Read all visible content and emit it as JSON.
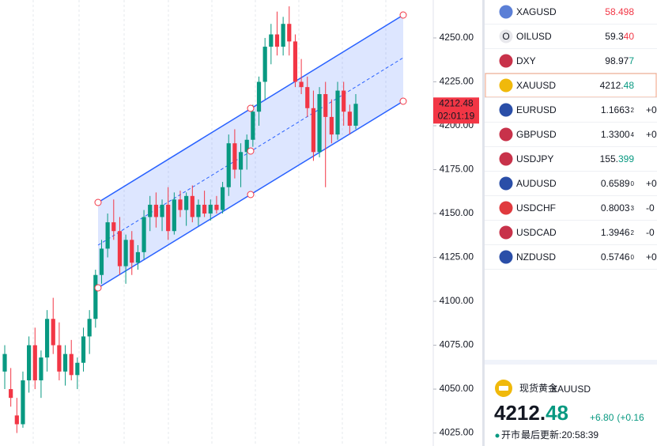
{
  "chart_data": {
    "type": "candlestick",
    "open": [
      4060,
      4050,
      4035,
      4030,
      4055,
      4075,
      4055,
      4068,
      4090,
      4075,
      4060,
      4070,
      4058,
      4065,
      4080,
      4090,
      4115,
      4130,
      4145,
      4140,
      4120,
      4135,
      4122,
      4128,
      4148,
      4155,
      4148,
      4155,
      4140,
      4158,
      4152,
      4160,
      4148,
      4155,
      4150,
      4155,
      4152,
      4165,
      4190,
      4175,
      4185,
      4192,
      4208,
      4225,
      4245,
      4252,
      4245,
      4258,
      4248,
      4225,
      4222,
      4210,
      4185,
      4218,
      4205,
      4195,
      4220,
      4208,
      4200
    ],
    "high": [
      4075,
      4062,
      4045,
      4060,
      4080,
      4085,
      4072,
      4095,
      4102,
      4088,
      4075,
      4078,
      4068,
      4085,
      4095,
      4118,
      4135,
      4150,
      4158,
      4148,
      4138,
      4140,
      4132,
      4152,
      4160,
      4162,
      4158,
      4165,
      4162,
      4163,
      4162,
      4166,
      4158,
      4163,
      4158,
      4160,
      4168,
      4195,
      4198,
      4190,
      4195,
      4212,
      4228,
      4250,
      4258,
      4265,
      4262,
      4268,
      4252,
      4238,
      4228,
      4220,
      4222,
      4225,
      4215,
      4225,
      4225,
      4212,
      4218
    ],
    "low": [
      4050,
      4040,
      4025,
      4028,
      4048,
      4050,
      4045,
      4060,
      4070,
      4055,
      4052,
      4055,
      4050,
      4060,
      4070,
      4085,
      4110,
      4125,
      4135,
      4115,
      4110,
      4115,
      4118,
      4124,
      4140,
      4142,
      4140,
      4135,
      4138,
      4148,
      4143,
      4145,
      4143,
      4148,
      4146,
      4150,
      4150,
      4160,
      4170,
      4165,
      4175,
      4188,
      4200,
      4215,
      4235,
      4240,
      4240,
      4240,
      4222,
      4218,
      4205,
      4180,
      4182,
      4165,
      4190,
      4192,
      4200,
      4195,
      4198
    ],
    "close": [
      4070,
      4045,
      4030,
      4055,
      4075,
      4055,
      4068,
      4090,
      4075,
      4060,
      4070,
      4058,
      4065,
      4080,
      4090,
      4115,
      4130,
      4145,
      4140,
      4120,
      4135,
      4122,
      4128,
      4148,
      4155,
      4148,
      4155,
      4140,
      4158,
      4152,
      4160,
      4148,
      4155,
      4150,
      4155,
      4152,
      4165,
      4190,
      4175,
      4185,
      4192,
      4208,
      4225,
      4245,
      4252,
      4245,
      4258,
      4248,
      4225,
      4222,
      4210,
      4185,
      4218,
      4205,
      4195,
      4220,
      4208,
      4200,
      4212.48
    ],
    "up_color": "#089981",
    "down_color": "#f23645",
    "ylim": [
      4017.6,
      4271.6
    ],
    "yticks": [
      {
        "value": 4250,
        "label": "4250.00"
      },
      {
        "value": 4225,
        "label": "4225.00"
      },
      {
        "value": 4200,
        "label": "4200.00"
      },
      {
        "value": 4175,
        "label": "4175.00"
      },
      {
        "value": 4150,
        "label": "4150.00"
      },
      {
        "value": 4125,
        "label": "4125.00"
      },
      {
        "value": 4100,
        "label": "4100.00"
      },
      {
        "value": 4075,
        "label": "4075.00"
      },
      {
        "value": 4050,
        "label": "4050.00"
      },
      {
        "value": 4025,
        "label": "4025.00"
      }
    ],
    "last_price": 4212.48,
    "countdown": "02:01:19"
  },
  "watchlist": [
    {
      "symbol": "XAGUSD",
      "price": "58.498",
      "price_color": "#f23645",
      "icon_color": "#5b7fd6"
    },
    {
      "symbol": "OILUSD",
      "price": "59.3",
      "tail": "40",
      "tail_color": "#f23645",
      "icon_color": "#e8e8ec",
      "icon_letter": "O"
    },
    {
      "symbol": "DXY",
      "price": "98.97",
      "tail": "7",
      "tail_color": "#089981",
      "icon_color": "#c8324a"
    },
    {
      "symbol": "XAUUSD",
      "price": "4212.",
      "tail": "48",
      "tail_color": "#089981",
      "icon_color": "#f0b90b",
      "selected": true
    },
    {
      "symbol": "EURUSD",
      "price": "1.1663",
      "pip": "2",
      "change": "+0",
      "change_color": "#089981",
      "icon_color": "#2a4ea8"
    },
    {
      "symbol": "GBPUSD",
      "price": "1.3300",
      "pip": "4",
      "change": "+0",
      "change_color": "#089981",
      "icon_color": "#c8324a"
    },
    {
      "symbol": "USDJPY",
      "price": "155.",
      "tail": "399",
      "tail_color": "#089981",
      "icon_color": "#c8324a"
    },
    {
      "symbol": "AUDUSD",
      "price": "0.6589",
      "pip": "0",
      "change": "+0",
      "change_color": "#089981",
      "icon_color": "#2a4ea8"
    },
    {
      "symbol": "USDCHF",
      "price": "0.8003",
      "pip": "3",
      "change": "-0",
      "change_color": "#f23645",
      "icon_color": "#e03a3e"
    },
    {
      "symbol": "USDCAD",
      "price": "1.3946",
      "pip": "2",
      "change": "-0",
      "change_color": "#f23645",
      "icon_color": "#c8324a"
    },
    {
      "symbol": "NZDUSD",
      "price": "0.5746",
      "pip": "0",
      "change": "+0",
      "change_color": "#089981",
      "icon_color": "#2a4ea8"
    }
  ],
  "detail": {
    "name": "现货黄金",
    "symbol": "XAUUSD",
    "price_main": "4212.",
    "price_tail": "48",
    "change": "+6.80",
    "change_pct": "(+0.16",
    "status": "开市",
    "updated": "最后更新:20:58:39"
  }
}
